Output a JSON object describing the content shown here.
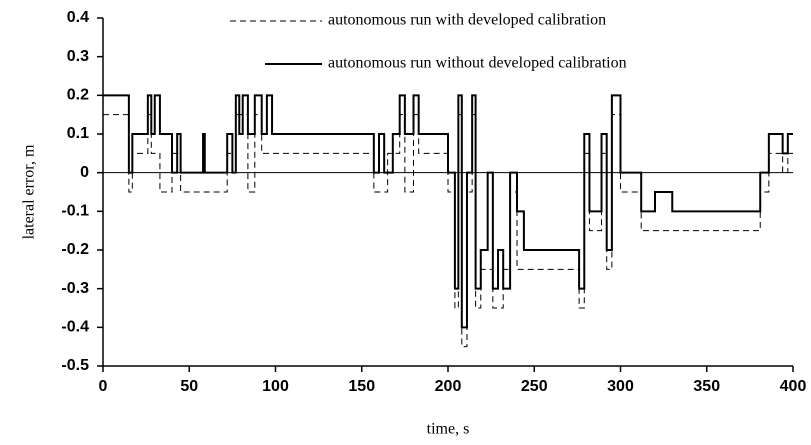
{
  "chart_data": {
    "type": "line",
    "xlabel": "time, s",
    "ylabel": "lateral error, m",
    "xlim": [
      0,
      400
    ],
    "xticks": [
      0,
      50,
      100,
      150,
      200,
      250,
      300,
      350,
      400
    ],
    "ylim": [
      -0.5,
      0.4
    ],
    "yticks": [
      -0.5,
      -0.4,
      -0.3,
      -0.2,
      -0.1,
      0,
      0.1,
      0.2,
      0.3,
      0.4
    ],
    "series": [
      {
        "name": "autonomous run with developed calibration",
        "color": "#000000",
        "dashed": true,
        "x": [
          0,
          15,
          15,
          17,
          17,
          26,
          26,
          28,
          28,
          33,
          33,
          40,
          40,
          45,
          45,
          72,
          72,
          77,
          77,
          84,
          84,
          88,
          88,
          92,
          92,
          157,
          157,
          165,
          165,
          172,
          172,
          175,
          175,
          180,
          180,
          183,
          183,
          200,
          200,
          204,
          204,
          206,
          206,
          208,
          208,
          211,
          211,
          214,
          214,
          216,
          216,
          219,
          219,
          226,
          226,
          232,
          232,
          236,
          236,
          240,
          240,
          276,
          276,
          279,
          279,
          282,
          282,
          289,
          289,
          292,
          292,
          295,
          295,
          300,
          300,
          312,
          312,
          381,
          381,
          386,
          386,
          394,
          394,
          397,
          397,
          400
        ],
        "values": [
          0.15,
          0.15,
          -0.05,
          -0.05,
          0.05,
          0.05,
          0.15,
          0.15,
          0.05,
          0.05,
          -0.05,
          -0.05,
          0.05,
          0.05,
          -0.05,
          -0.05,
          0.05,
          0.05,
          0.15,
          0.15,
          -0.05,
          -0.05,
          0.15,
          0.15,
          0.05,
          0.05,
          -0.05,
          -0.05,
          0.05,
          0.05,
          0.15,
          0.15,
          -0.05,
          -0.05,
          0.15,
          0.15,
          0.05,
          0.05,
          -0.05,
          -0.05,
          -0.35,
          -0.35,
          0.15,
          0.15,
          -0.45,
          -0.45,
          -0.05,
          -0.05,
          0.15,
          0.15,
          -0.35,
          -0.35,
          -0.25,
          -0.25,
          -0.35,
          -0.35,
          -0.25,
          -0.25,
          -0.05,
          -0.05,
          -0.25,
          -0.25,
          -0.35,
          -0.35,
          0.05,
          0.05,
          -0.15,
          -0.15,
          0.05,
          0.05,
          -0.25,
          -0.25,
          0.15,
          0.15,
          -0.05,
          -0.05,
          -0.15,
          -0.15,
          -0.05,
          -0.05,
          0.05,
          0.05,
          0,
          0,
          0.05,
          0.05
        ]
      },
      {
        "name": "autonomous run without developed calibration",
        "color": "#000000",
        "dashed": false,
        "x": [
          0,
          15,
          15,
          17,
          17,
          26,
          26,
          28,
          28,
          30,
          30,
          33,
          33,
          40,
          40,
          43,
          43,
          45,
          45,
          58,
          58,
          59,
          59,
          72,
          72,
          75,
          75,
          77,
          77,
          79,
          79,
          81,
          81,
          84,
          84,
          88,
          88,
          92,
          92,
          95,
          95,
          98,
          98,
          157,
          157,
          160,
          160,
          163,
          163,
          168,
          168,
          172,
          172,
          175,
          175,
          180,
          180,
          183,
          183,
          200,
          200,
          204,
          204,
          206,
          206,
          208,
          208,
          211,
          211,
          214,
          214,
          216,
          216,
          219,
          219,
          223,
          223,
          226,
          226,
          229,
          229,
          232,
          232,
          236,
          236,
          240,
          240,
          244,
          244,
          276,
          276,
          279,
          279,
          282,
          282,
          289,
          289,
          292,
          292,
          295,
          295,
          300,
          300,
          312,
          312,
          320,
          320,
          330,
          330,
          381,
          381,
          386,
          386,
          394,
          394,
          397,
          397,
          400
        ],
        "values": [
          0.2,
          0.2,
          0,
          0,
          0.1,
          0.1,
          0.2,
          0.2,
          0.1,
          0.1,
          0.2,
          0.2,
          0.1,
          0.1,
          0,
          0,
          0.1,
          0.1,
          0,
          0,
          0.1,
          0.1,
          0,
          0,
          0.1,
          0.1,
          0,
          0,
          0.2,
          0.2,
          0.1,
          0.1,
          0.2,
          0.2,
          0.1,
          0.1,
          0.2,
          0.2,
          0.1,
          0.1,
          0.2,
          0.2,
          0.1,
          0.1,
          0,
          0,
          0.1,
          0.1,
          0,
          0,
          0.1,
          0.1,
          0.2,
          0.2,
          0.1,
          0.1,
          0.2,
          0.2,
          0.1,
          0.1,
          0,
          0,
          -0.3,
          -0.3,
          0.2,
          0.2,
          -0.4,
          -0.4,
          0,
          0,
          0.2,
          0.2,
          -0.3,
          -0.3,
          -0.2,
          -0.2,
          0,
          0,
          -0.3,
          -0.3,
          -0.2,
          -0.2,
          -0.3,
          -0.3,
          0,
          0,
          -0.1,
          -0.1,
          -0.2,
          -0.2,
          -0.3,
          -0.3,
          0.1,
          0.1,
          -0.1,
          -0.1,
          0.1,
          0.1,
          -0.2,
          -0.2,
          0.2,
          0.2,
          0,
          0,
          -0.1,
          -0.1,
          -0.05,
          -0.05,
          -0.1,
          -0.1,
          0,
          0,
          0.1,
          0.1,
          0.05,
          0.05,
          0.1,
          0.1
        ]
      }
    ]
  }
}
